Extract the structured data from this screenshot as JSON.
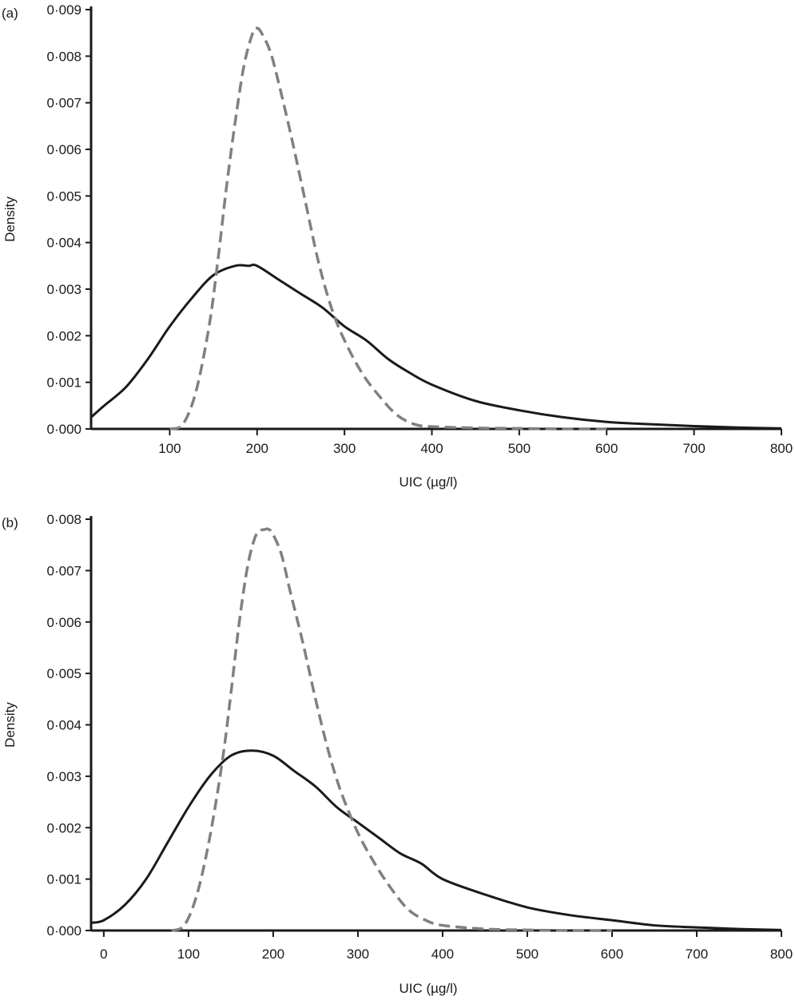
{
  "chart_data": [
    {
      "panel_label": "(a)",
      "type": "line",
      "xlabel": "UIC (µg/l)",
      "ylabel": "Density",
      "xlim": [
        10,
        800
      ],
      "ylim": [
        0,
        0.009
      ],
      "x_ticks": [
        100,
        200,
        300,
        400,
        500,
        600,
        700,
        800
      ],
      "y_ticks": [
        "0·000",
        "0·001",
        "0·002",
        "0·003",
        "0·004",
        "0·005",
        "0·006",
        "0·007",
        "0·008",
        "0·009"
      ],
      "y_tick_values": [
        0,
        0.001,
        0.002,
        0.003,
        0.004,
        0.005,
        0.006,
        0.007,
        0.008,
        0.009
      ],
      "series": [
        {
          "style": "solid",
          "color": "#1a1a1a",
          "x": [
            10,
            25,
            50,
            75,
            100,
            125,
            150,
            175,
            190,
            200,
            225,
            250,
            275,
            300,
            325,
            350,
            375,
            400,
            450,
            500,
            550,
            600,
            650,
            700,
            750,
            800
          ],
          "y": [
            0.00025,
            0.0005,
            0.0009,
            0.0015,
            0.0022,
            0.0028,
            0.0033,
            0.0035,
            0.0035,
            0.0035,
            0.0032,
            0.0029,
            0.0026,
            0.0022,
            0.0019,
            0.0015,
            0.0012,
            0.00095,
            0.0006,
            0.0004,
            0.00025,
            0.00015,
            0.0001,
            6e-05,
            3e-05,
            1e-05
          ]
        },
        {
          "style": "dashed",
          "color": "#808080",
          "x": [
            100,
            115,
            130,
            145,
            155,
            165,
            175,
            185,
            195,
            200,
            205,
            215,
            225,
            240,
            255,
            270,
            285,
            300,
            320,
            340,
            360,
            380,
            400,
            450,
            500,
            550,
            600
          ],
          "y": [
            0,
            0.0001,
            0.0008,
            0.0022,
            0.0036,
            0.0052,
            0.0066,
            0.0078,
            0.0085,
            0.0086,
            0.0085,
            0.0081,
            0.0074,
            0.0062,
            0.0049,
            0.0036,
            0.0026,
            0.0019,
            0.0012,
            0.0007,
            0.0003,
            0.0001,
            5e-05,
            2e-05,
            1e-05,
            0,
            0
          ]
        }
      ]
    },
    {
      "panel_label": "(b)",
      "type": "line",
      "xlabel": "UIC (µg/l)",
      "ylabel": "Density",
      "xlim": [
        -15,
        800
      ],
      "ylim": [
        0,
        0.008
      ],
      "x_ticks": [
        0,
        100,
        200,
        300,
        400,
        500,
        600,
        700,
        800
      ],
      "y_ticks": [
        "0·000",
        "0·001",
        "0·002",
        "0·003",
        "0·004",
        "0·005",
        "0·006",
        "0·007",
        "0·008"
      ],
      "y_tick_values": [
        0,
        0.001,
        0.002,
        0.003,
        0.004,
        0.005,
        0.006,
        0.007,
        0.008
      ],
      "series": [
        {
          "style": "solid",
          "color": "#1a1a1a",
          "x": [
            -15,
            0,
            25,
            50,
            75,
            100,
            125,
            150,
            175,
            200,
            225,
            250,
            275,
            300,
            325,
            350,
            375,
            400,
            450,
            500,
            550,
            600,
            650,
            700,
            750,
            800
          ],
          "y": [
            0.00015,
            0.0002,
            0.0005,
            0.001,
            0.0017,
            0.0024,
            0.003,
            0.0034,
            0.0035,
            0.0034,
            0.0031,
            0.0028,
            0.0024,
            0.0021,
            0.0018,
            0.0015,
            0.0013,
            0.001,
            0.0007,
            0.00045,
            0.0003,
            0.0002,
            0.0001,
            6e-05,
            3e-05,
            1e-05
          ]
        },
        {
          "style": "dashed",
          "color": "#808080",
          "x": [
            80,
            95,
            110,
            125,
            140,
            150,
            160,
            170,
            180,
            190,
            195,
            200,
            210,
            220,
            235,
            250,
            265,
            280,
            300,
            320,
            340,
            360,
            380,
            400,
            450,
            500,
            550,
            600
          ],
          "y": [
            0,
            0.0001,
            0.0007,
            0.0018,
            0.0033,
            0.0046,
            0.006,
            0.0071,
            0.0077,
            0.0078,
            0.0078,
            0.0077,
            0.0073,
            0.0066,
            0.0056,
            0.0045,
            0.0035,
            0.0027,
            0.0019,
            0.0013,
            0.0008,
            0.0004,
            0.0002,
            0.0001,
            3e-05,
            1e-05,
            0,
            0
          ]
        }
      ]
    }
  ]
}
